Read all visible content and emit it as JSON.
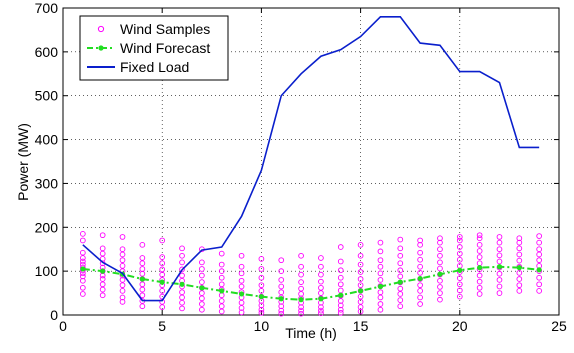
{
  "chart_data": {
    "type": "line",
    "title": "",
    "xlabel": "Time (h)",
    "ylabel": "Power (MW)",
    "xlim": [
      0,
      25
    ],
    "ylim": [
      0,
      700
    ],
    "xticks": [
      0,
      5,
      10,
      15,
      20,
      25
    ],
    "yticks": [
      0,
      100,
      200,
      300,
      400,
      500,
      600,
      700
    ],
    "grid": true,
    "legend_position": "top-left",
    "colors": {
      "wind_samples": "#ff00ff",
      "wind_forecast": "#22dd22",
      "fixed_load": "#0a1fcc"
    },
    "series": [
      {
        "name": "Wind Samples",
        "style": "scatter-circle",
        "points": [
          [
            1,
            48
          ],
          [
            1,
            62
          ],
          [
            1,
            78
          ],
          [
            1,
            88
          ],
          [
            1,
            95
          ],
          [
            1,
            102
          ],
          [
            1,
            108
          ],
          [
            1,
            115
          ],
          [
            1,
            122
          ],
          [
            1,
            130
          ],
          [
            1,
            142
          ],
          [
            1,
            170
          ],
          [
            1,
            185
          ],
          [
            2,
            45
          ],
          [
            2,
            58
          ],
          [
            2,
            70
          ],
          [
            2,
            82
          ],
          [
            2,
            90
          ],
          [
            2,
            100
          ],
          [
            2,
            108
          ],
          [
            2,
            118
          ],
          [
            2,
            128
          ],
          [
            2,
            140
          ],
          [
            2,
            152
          ],
          [
            2,
            182
          ],
          [
            3,
            30
          ],
          [
            3,
            40
          ],
          [
            3,
            55
          ],
          [
            3,
            68
          ],
          [
            3,
            80
          ],
          [
            3,
            90
          ],
          [
            3,
            100
          ],
          [
            3,
            112
          ],
          [
            3,
            125
          ],
          [
            3,
            138
          ],
          [
            3,
            150
          ],
          [
            3,
            178
          ],
          [
            4,
            20
          ],
          [
            4,
            32
          ],
          [
            4,
            45
          ],
          [
            4,
            58
          ],
          [
            4,
            70
          ],
          [
            4,
            82
          ],
          [
            4,
            94
          ],
          [
            4,
            105
          ],
          [
            4,
            118
          ],
          [
            4,
            130
          ],
          [
            4,
            160
          ],
          [
            5,
            18
          ],
          [
            5,
            30
          ],
          [
            5,
            42
          ],
          [
            5,
            55
          ],
          [
            5,
            68
          ],
          [
            5,
            80
          ],
          [
            5,
            92
          ],
          [
            5,
            104
          ],
          [
            5,
            118
          ],
          [
            5,
            132
          ],
          [
            5,
            170
          ],
          [
            6,
            15
          ],
          [
            6,
            28
          ],
          [
            6,
            40
          ],
          [
            6,
            52
          ],
          [
            6,
            65
          ],
          [
            6,
            78
          ],
          [
            6,
            90
          ],
          [
            6,
            104
          ],
          [
            6,
            120
          ],
          [
            6,
            135
          ],
          [
            6,
            152
          ],
          [
            7,
            12
          ],
          [
            7,
            25
          ],
          [
            7,
            38
          ],
          [
            7,
            50
          ],
          [
            7,
            62
          ],
          [
            7,
            75
          ],
          [
            7,
            90
          ],
          [
            7,
            105
          ],
          [
            7,
            120
          ],
          [
            7,
            150
          ],
          [
            8,
            8
          ],
          [
            8,
            20
          ],
          [
            8,
            32
          ],
          [
            8,
            45
          ],
          [
            8,
            58
          ],
          [
            8,
            70
          ],
          [
            8,
            85
          ],
          [
            8,
            100
          ],
          [
            8,
            115
          ],
          [
            8,
            140
          ],
          [
            9,
            6
          ],
          [
            9,
            16
          ],
          [
            9,
            28
          ],
          [
            9,
            40
          ],
          [
            9,
            52
          ],
          [
            9,
            65
          ],
          [
            9,
            78
          ],
          [
            9,
            95
          ],
          [
            9,
            110
          ],
          [
            9,
            135
          ],
          [
            10,
            5
          ],
          [
            10,
            12
          ],
          [
            10,
            22
          ],
          [
            10,
            32
          ],
          [
            10,
            42
          ],
          [
            10,
            55
          ],
          [
            10,
            68
          ],
          [
            10,
            85
          ],
          [
            10,
            105
          ],
          [
            10,
            128
          ],
          [
            11,
            3
          ],
          [
            11,
            10
          ],
          [
            11,
            20
          ],
          [
            11,
            30
          ],
          [
            11,
            40
          ],
          [
            11,
            52
          ],
          [
            11,
            65
          ],
          [
            11,
            80
          ],
          [
            11,
            100
          ],
          [
            11,
            125
          ],
          [
            12,
            3
          ],
          [
            12,
            10
          ],
          [
            12,
            18
          ],
          [
            12,
            28
          ],
          [
            12,
            38
          ],
          [
            12,
            48
          ],
          [
            12,
            60
          ],
          [
            12,
            75
          ],
          [
            12,
            92
          ],
          [
            12,
            110
          ],
          [
            12,
            135
          ],
          [
            13,
            4
          ],
          [
            13,
            10
          ],
          [
            13,
            18
          ],
          [
            13,
            28
          ],
          [
            13,
            38
          ],
          [
            13,
            50
          ],
          [
            13,
            62
          ],
          [
            13,
            76
          ],
          [
            13,
            92
          ],
          [
            13,
            110
          ],
          [
            13,
            130
          ],
          [
            14,
            5
          ],
          [
            14,
            12
          ],
          [
            14,
            22
          ],
          [
            14,
            32
          ],
          [
            14,
            44
          ],
          [
            14,
            56
          ],
          [
            14,
            70
          ],
          [
            14,
            85
          ],
          [
            14,
            102
          ],
          [
            14,
            122
          ],
          [
            14,
            155
          ],
          [
            15,
            8
          ],
          [
            15,
            18
          ],
          [
            15,
            30
          ],
          [
            15,
            42
          ],
          [
            15,
            55
          ],
          [
            15,
            68
          ],
          [
            15,
            82
          ],
          [
            15,
            98
          ],
          [
            15,
            115
          ],
          [
            15,
            135
          ],
          [
            15,
            160
          ],
          [
            16,
            12
          ],
          [
            16,
            25
          ],
          [
            16,
            40
          ],
          [
            16,
            52
          ],
          [
            16,
            66
          ],
          [
            16,
            80
          ],
          [
            16,
            95
          ],
          [
            16,
            110
          ],
          [
            16,
            125
          ],
          [
            16,
            145
          ],
          [
            16,
            165
          ],
          [
            17,
            20
          ],
          [
            17,
            34
          ],
          [
            17,
            48
          ],
          [
            17,
            60
          ],
          [
            17,
            74
          ],
          [
            17,
            88
          ],
          [
            17,
            102
          ],
          [
            17,
            118
          ],
          [
            17,
            135
          ],
          [
            17,
            152
          ],
          [
            17,
            172
          ],
          [
            18,
            25
          ],
          [
            18,
            40
          ],
          [
            18,
            55
          ],
          [
            18,
            68
          ],
          [
            18,
            82
          ],
          [
            18,
            96
          ],
          [
            18,
            110
          ],
          [
            18,
            126
          ],
          [
            18,
            142
          ],
          [
            18,
            160
          ],
          [
            18,
            170
          ],
          [
            19,
            35
          ],
          [
            19,
            50
          ],
          [
            19,
            64
          ],
          [
            19,
            78
          ],
          [
            19,
            92
          ],
          [
            19,
            106
          ],
          [
            19,
            120
          ],
          [
            19,
            135
          ],
          [
            19,
            150
          ],
          [
            19,
            165
          ],
          [
            19,
            175
          ],
          [
            20,
            42
          ],
          [
            20,
            56
          ],
          [
            20,
            70
          ],
          [
            20,
            84
          ],
          [
            20,
            98
          ],
          [
            20,
            112
          ],
          [
            20,
            126
          ],
          [
            20,
            140
          ],
          [
            20,
            155
          ],
          [
            20,
            170
          ],
          [
            20,
            178
          ],
          [
            21,
            48
          ],
          [
            21,
            62
          ],
          [
            21,
            76
          ],
          [
            21,
            90
          ],
          [
            21,
            104
          ],
          [
            21,
            118
          ],
          [
            21,
            132
          ],
          [
            21,
            146
          ],
          [
            21,
            160
          ],
          [
            21,
            175
          ],
          [
            21,
            182
          ],
          [
            22,
            50
          ],
          [
            22,
            65
          ],
          [
            22,
            80
          ],
          [
            22,
            94
          ],
          [
            22,
            108
          ],
          [
            22,
            122
          ],
          [
            22,
            136
          ],
          [
            22,
            150
          ],
          [
            22,
            165
          ],
          [
            22,
            178
          ],
          [
            23,
            55
          ],
          [
            23,
            68
          ],
          [
            23,
            82
          ],
          [
            23,
            96
          ],
          [
            23,
            110
          ],
          [
            23,
            124
          ],
          [
            23,
            138
          ],
          [
            23,
            152
          ],
          [
            23,
            165
          ],
          [
            23,
            175
          ],
          [
            24,
            55
          ],
          [
            24,
            70
          ],
          [
            24,
            85
          ],
          [
            24,
            100
          ],
          [
            24,
            112
          ],
          [
            24,
            125
          ],
          [
            24,
            138
          ],
          [
            24,
            150
          ],
          [
            24,
            165
          ],
          [
            24,
            180
          ]
        ]
      },
      {
        "name": "Wind Forecast",
        "style": "dash-dot-marker",
        "x": [
          1,
          2,
          3,
          4,
          5,
          6,
          7,
          8,
          9,
          10,
          11,
          12,
          13,
          14,
          15,
          16,
          17,
          18,
          19,
          20,
          21,
          22,
          23,
          24
        ],
        "values": [
          105,
          100,
          93,
          82,
          75,
          70,
          62,
          55,
          48,
          42,
          37,
          35,
          37,
          45,
          55,
          65,
          75,
          83,
          93,
          102,
          108,
          110,
          108,
          103
        ]
      },
      {
        "name": "Fixed Load",
        "style": "line",
        "x": [
          1,
          2,
          3,
          4,
          5,
          6,
          7,
          8,
          9,
          10,
          11,
          12,
          13,
          14,
          15,
          16,
          17,
          18,
          19,
          20,
          21,
          22,
          23,
          24
        ],
        "values": [
          160,
          120,
          95,
          33,
          33,
          103,
          148,
          155,
          225,
          330,
          500,
          550,
          590,
          605,
          635,
          680,
          680,
          620,
          615,
          555,
          555,
          530,
          382,
          382
        ]
      }
    ]
  }
}
